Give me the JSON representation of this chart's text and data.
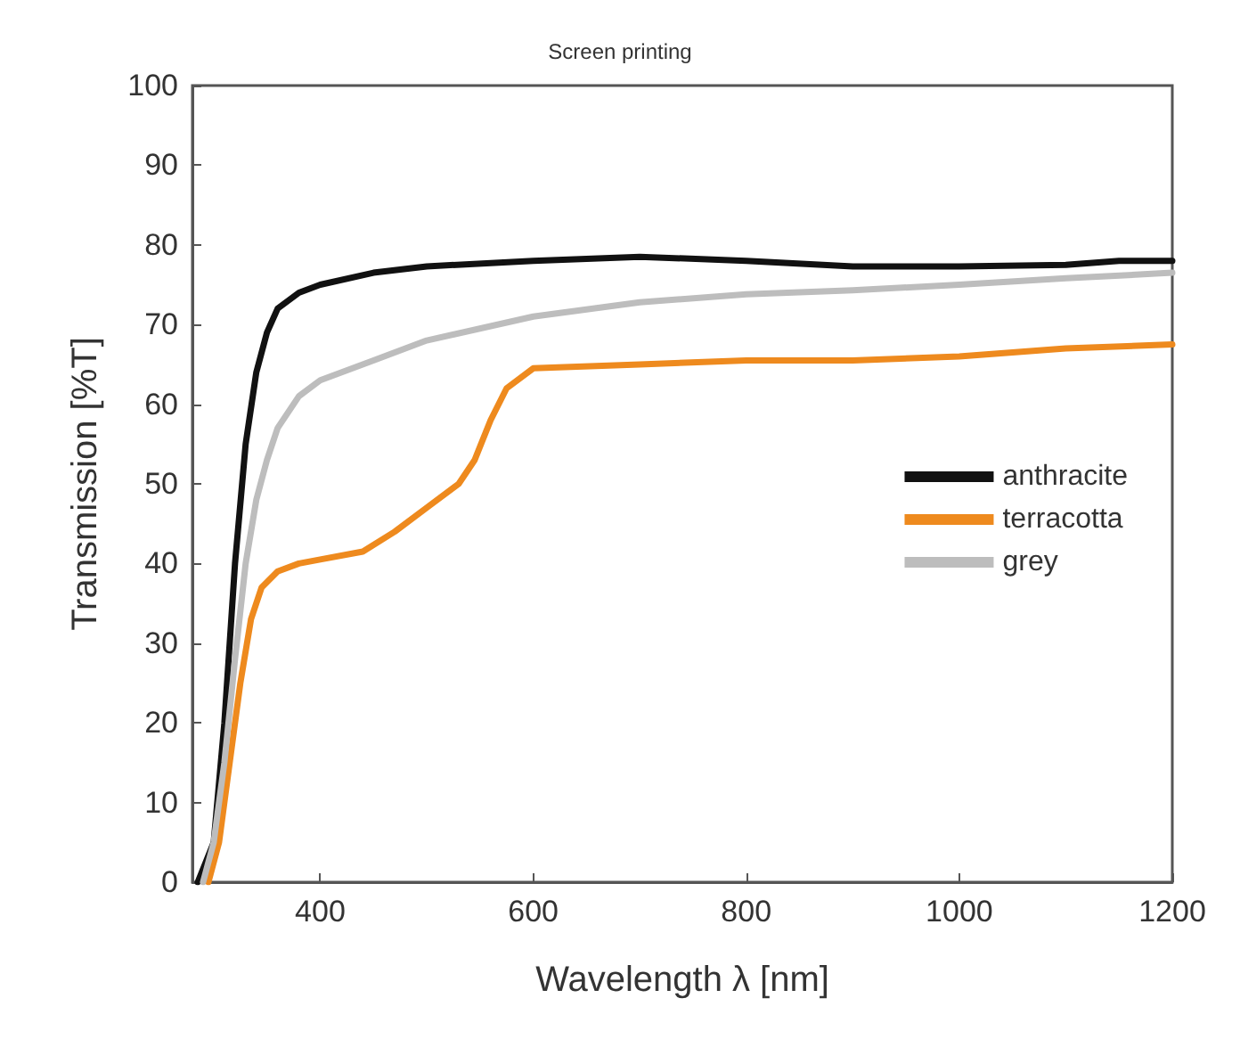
{
  "chart_data": {
    "type": "line",
    "title": "Screen printing",
    "xlabel": "Wavelength λ [nm]",
    "ylabel": "Transmission [%T]",
    "xlim": [
      280,
      1200
    ],
    "xticks": [
      400,
      600,
      800,
      1000,
      1200
    ],
    "ylim": [
      0,
      100
    ],
    "yticks": [
      0,
      10,
      20,
      30,
      40,
      50,
      60,
      70,
      80,
      90,
      100
    ],
    "grid": false,
    "legend": "right",
    "marker": "none",
    "line_style": "solid",
    "series": [
      {
        "name": "anthracite",
        "color": "#111111",
        "x": [
          285,
          300,
          310,
          320,
          330,
          340,
          350,
          360,
          380,
          400,
          450,
          500,
          600,
          700,
          800,
          900,
          1000,
          1100,
          1150,
          1200
        ],
        "values": [
          0,
          5,
          20,
          40,
          55,
          64,
          69,
          72,
          74,
          75,
          76.5,
          77.3,
          78,
          78.5,
          78,
          77.3,
          77.3,
          77.5,
          78,
          78
        ]
      },
      {
        "name": "terracotta",
        "color": "#ee8a1e",
        "x": [
          295,
          305,
          315,
          325,
          335,
          345,
          360,
          380,
          400,
          440,
          470,
          500,
          530,
          545,
          560,
          575,
          600,
          700,
          800,
          900,
          1000,
          1100,
          1200
        ],
        "values": [
          0,
          5,
          15,
          25,
          33,
          37,
          39,
          40,
          40.5,
          41.5,
          44,
          47,
          50,
          53,
          58,
          62,
          64.5,
          65,
          65.5,
          65.5,
          66,
          67,
          67.5
        ]
      },
      {
        "name": "grey",
        "color": "#bdbdbd",
        "x": [
          290,
          300,
          310,
          320,
          330,
          340,
          350,
          360,
          380,
          400,
          450,
          500,
          600,
          700,
          800,
          900,
          1000,
          1100,
          1200
        ],
        "values": [
          0,
          5,
          15,
          28,
          40,
          48,
          53,
          57,
          61,
          63,
          65.5,
          68,
          71,
          72.8,
          73.8,
          74.3,
          75,
          75.8,
          76.5
        ]
      }
    ]
  }
}
